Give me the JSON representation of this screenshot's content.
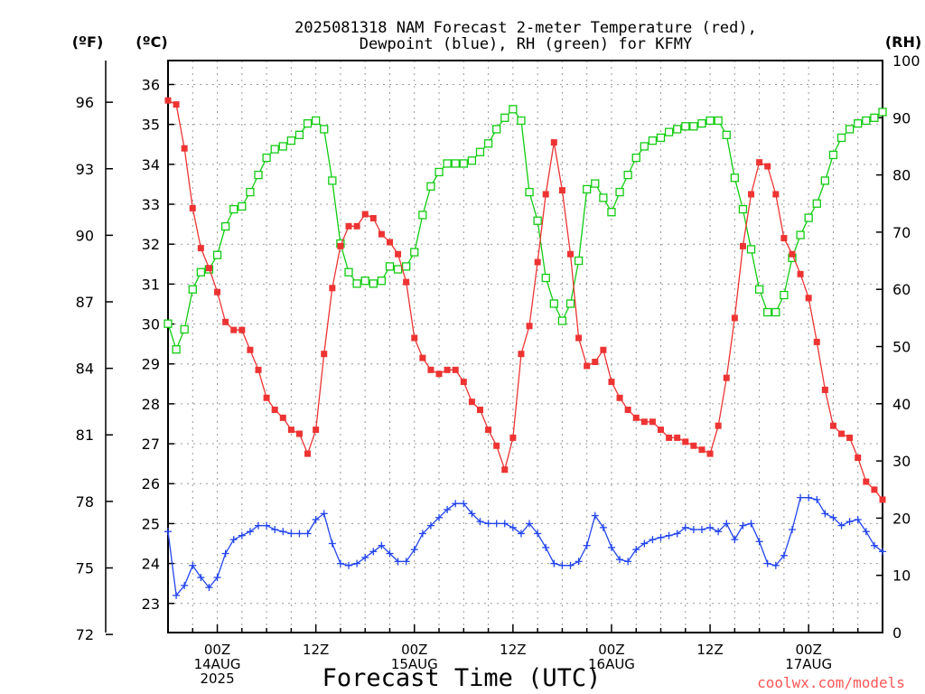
{
  "chart_data": {
    "type": "line",
    "title_lines": [
      "2025081318 NAM Forecast 2-meter Temperature (red),",
      "Dewpoint (blue), RH (green) for KFMY"
    ],
    "unit_f": "(ºF)",
    "unit_c": "(ºC)",
    "unit_rh": "(RH)",
    "xlabel": "Forecast Time (UTC)",
    "credit": "coolwx.com/models",
    "x_range_hours": [
      0,
      87
    ],
    "ylim_c": [
      22.27,
      36.6
    ],
    "ylim_rh": [
      0,
      100
    ],
    "f_ticks": [
      72,
      75,
      78,
      81,
      84,
      87,
      90,
      93,
      96
    ],
    "c_ticks": [
      23,
      24,
      25,
      26,
      27,
      28,
      29,
      30,
      31,
      32,
      33,
      34,
      35,
      36
    ],
    "rh_ticks": [
      0,
      10,
      20,
      30,
      40,
      50,
      60,
      70,
      80,
      90,
      100
    ],
    "x_ticks": [
      {
        "hour": 6,
        "lines": [
          "00Z",
          "14AUG",
          "2025"
        ]
      },
      {
        "hour": 18,
        "lines": [
          "12Z"
        ]
      },
      {
        "hour": 30,
        "lines": [
          "00Z",
          "15AUG"
        ]
      },
      {
        "hour": 42,
        "lines": [
          "12Z"
        ]
      },
      {
        "hour": 54,
        "lines": [
          "00Z",
          "16AUG"
        ]
      },
      {
        "hour": 66,
        "lines": [
          "12Z"
        ]
      },
      {
        "hour": 78,
        "lines": [
          "00Z",
          "17AUG"
        ]
      }
    ],
    "grid": true,
    "colors": {
      "temperature": "#ee3333",
      "dewpoint": "#2244ee",
      "rh": "#11cc11"
    },
    "series": [
      {
        "name": "Temperature",
        "units": "C",
        "x": [
          0,
          1,
          2,
          3,
          4,
          5,
          6,
          7,
          8,
          9,
          10,
          11,
          12,
          13,
          14,
          15,
          16,
          17,
          18,
          19,
          20,
          21,
          22,
          23,
          24,
          25,
          26,
          27,
          28,
          29,
          30,
          31,
          32,
          33,
          34,
          35,
          36,
          37,
          38,
          39,
          40,
          41,
          42,
          43,
          44,
          45,
          46,
          47,
          48,
          49,
          50,
          51,
          52,
          53,
          54,
          55,
          56,
          57,
          58,
          59,
          60,
          61,
          62,
          63,
          64,
          65,
          66,
          67,
          68,
          69,
          70,
          71,
          72,
          73,
          74,
          75,
          76,
          77,
          78,
          79,
          80,
          81,
          82,
          83,
          84,
          85,
          86,
          87
        ],
        "values": [
          35.6,
          35.5,
          34.4,
          32.9,
          31.9,
          31.4,
          30.8,
          30.05,
          29.85,
          29.85,
          29.35,
          28.85,
          28.15,
          27.85,
          27.65,
          27.35,
          27.25,
          26.75,
          27.35,
          29.25,
          30.9,
          31.95,
          32.45,
          32.45,
          32.75,
          32.65,
          32.25,
          32.05,
          31.75,
          31.05,
          29.65,
          29.15,
          28.85,
          28.75,
          28.85,
          28.85,
          28.55,
          28.05,
          27.85,
          27.35,
          26.95,
          26.35,
          27.15,
          29.25,
          29.95,
          31.55,
          33.25,
          34.55,
          33.35,
          31.75,
          29.65,
          28.95,
          29.05,
          29.35,
          28.55,
          28.15,
          27.85,
          27.65,
          27.55,
          27.55,
          27.35,
          27.15,
          27.15,
          27.05,
          26.95,
          26.85,
          26.75,
          27.45,
          28.65,
          30.15,
          31.95,
          33.25,
          34.05,
          33.95,
          33.25,
          32.15,
          31.75,
          31.25,
          30.65,
          29.55,
          28.35,
          27.45,
          27.25,
          27.15,
          26.65,
          26.05,
          25.85,
          25.6
        ]
      },
      {
        "name": "Dewpoint",
        "units": "C",
        "x": [
          0,
          1,
          2,
          3,
          4,
          5,
          6,
          7,
          8,
          9,
          10,
          11,
          12,
          13,
          14,
          15,
          16,
          17,
          18,
          19,
          20,
          21,
          22,
          23,
          24,
          25,
          26,
          27,
          28,
          29,
          30,
          31,
          32,
          33,
          34,
          35,
          36,
          37,
          38,
          39,
          40,
          41,
          42,
          43,
          44,
          45,
          46,
          47,
          48,
          49,
          50,
          51,
          52,
          53,
          54,
          55,
          56,
          57,
          58,
          59,
          60,
          61,
          62,
          63,
          64,
          65,
          66,
          67,
          68,
          69,
          70,
          71,
          72,
          73,
          74,
          75,
          76,
          77,
          78,
          79,
          80,
          81,
          82,
          83,
          84,
          85,
          86,
          87
        ],
        "values": [
          24.8,
          23.2,
          23.45,
          23.95,
          23.65,
          23.4,
          23.65,
          24.25,
          24.6,
          24.7,
          24.8,
          24.95,
          24.95,
          24.85,
          24.8,
          24.75,
          24.75,
          24.75,
          25.1,
          25.25,
          24.5,
          24.0,
          23.95,
          24.0,
          24.15,
          24.3,
          24.45,
          24.25,
          24.05,
          24.05,
          24.35,
          24.75,
          24.95,
          25.15,
          25.35,
          25.5,
          25.5,
          25.25,
          25.05,
          25.0,
          25.0,
          25.0,
          24.9,
          24.75,
          25.0,
          24.75,
          24.4,
          24.0,
          23.95,
          23.95,
          24.05,
          24.45,
          25.2,
          24.9,
          24.4,
          24.1,
          24.05,
          24.35,
          24.5,
          24.6,
          24.65,
          24.7,
          24.75,
          24.9,
          24.85,
          24.85,
          24.9,
          24.8,
          25.0,
          24.6,
          24.95,
          25.0,
          24.55,
          24.0,
          23.95,
          24.2,
          24.85,
          25.65,
          25.65,
          25.6,
          25.25,
          25.15,
          24.95,
          25.05,
          25.1,
          24.8,
          24.45,
          24.3
        ]
      },
      {
        "name": "RH",
        "units": "%",
        "x": [
          0,
          1,
          2,
          3,
          4,
          5,
          6,
          7,
          8,
          9,
          10,
          11,
          12,
          13,
          14,
          15,
          16,
          17,
          18,
          19,
          20,
          21,
          22,
          23,
          24,
          25,
          26,
          27,
          28,
          29,
          30,
          31,
          32,
          33,
          34,
          35,
          36,
          37,
          38,
          39,
          40,
          41,
          42,
          43,
          44,
          45,
          46,
          47,
          48,
          49,
          50,
          51,
          52,
          53,
          54,
          55,
          56,
          57,
          58,
          59,
          60,
          61,
          62,
          63,
          64,
          65,
          66,
          67,
          68,
          69,
          70,
          71,
          72,
          73,
          74,
          75,
          76,
          77,
          78,
          79,
          80,
          81,
          82,
          83,
          84,
          85,
          86,
          87
        ],
        "values": [
          54,
          49.5,
          53,
          60,
          63,
          63.5,
          66,
          71,
          74,
          74.5,
          77,
          80,
          83,
          84.5,
          85,
          86,
          87,
          89,
          89.5,
          88,
          79,
          68,
          63,
          61,
          61.5,
          61,
          61.5,
          64,
          63.5,
          64,
          66.5,
          73,
          78,
          80.5,
          82,
          82,
          82,
          82.5,
          84,
          85.5,
          88,
          90,
          91.5,
          89.5,
          77,
          72,
          62,
          57.5,
          54.5,
          57.5,
          65,
          77.5,
          78.5,
          76,
          73.5,
          77,
          80,
          83,
          85,
          86,
          86.5,
          87.5,
          88,
          88.5,
          88.5,
          89,
          89.5,
          89.5,
          87,
          79.5,
          74,
          67,
          60,
          56,
          56,
          59,
          65.5,
          69.5,
          72.5,
          75,
          79,
          83.5,
          86.5,
          88,
          89,
          89.5,
          90,
          91
        ]
      }
    ]
  }
}
